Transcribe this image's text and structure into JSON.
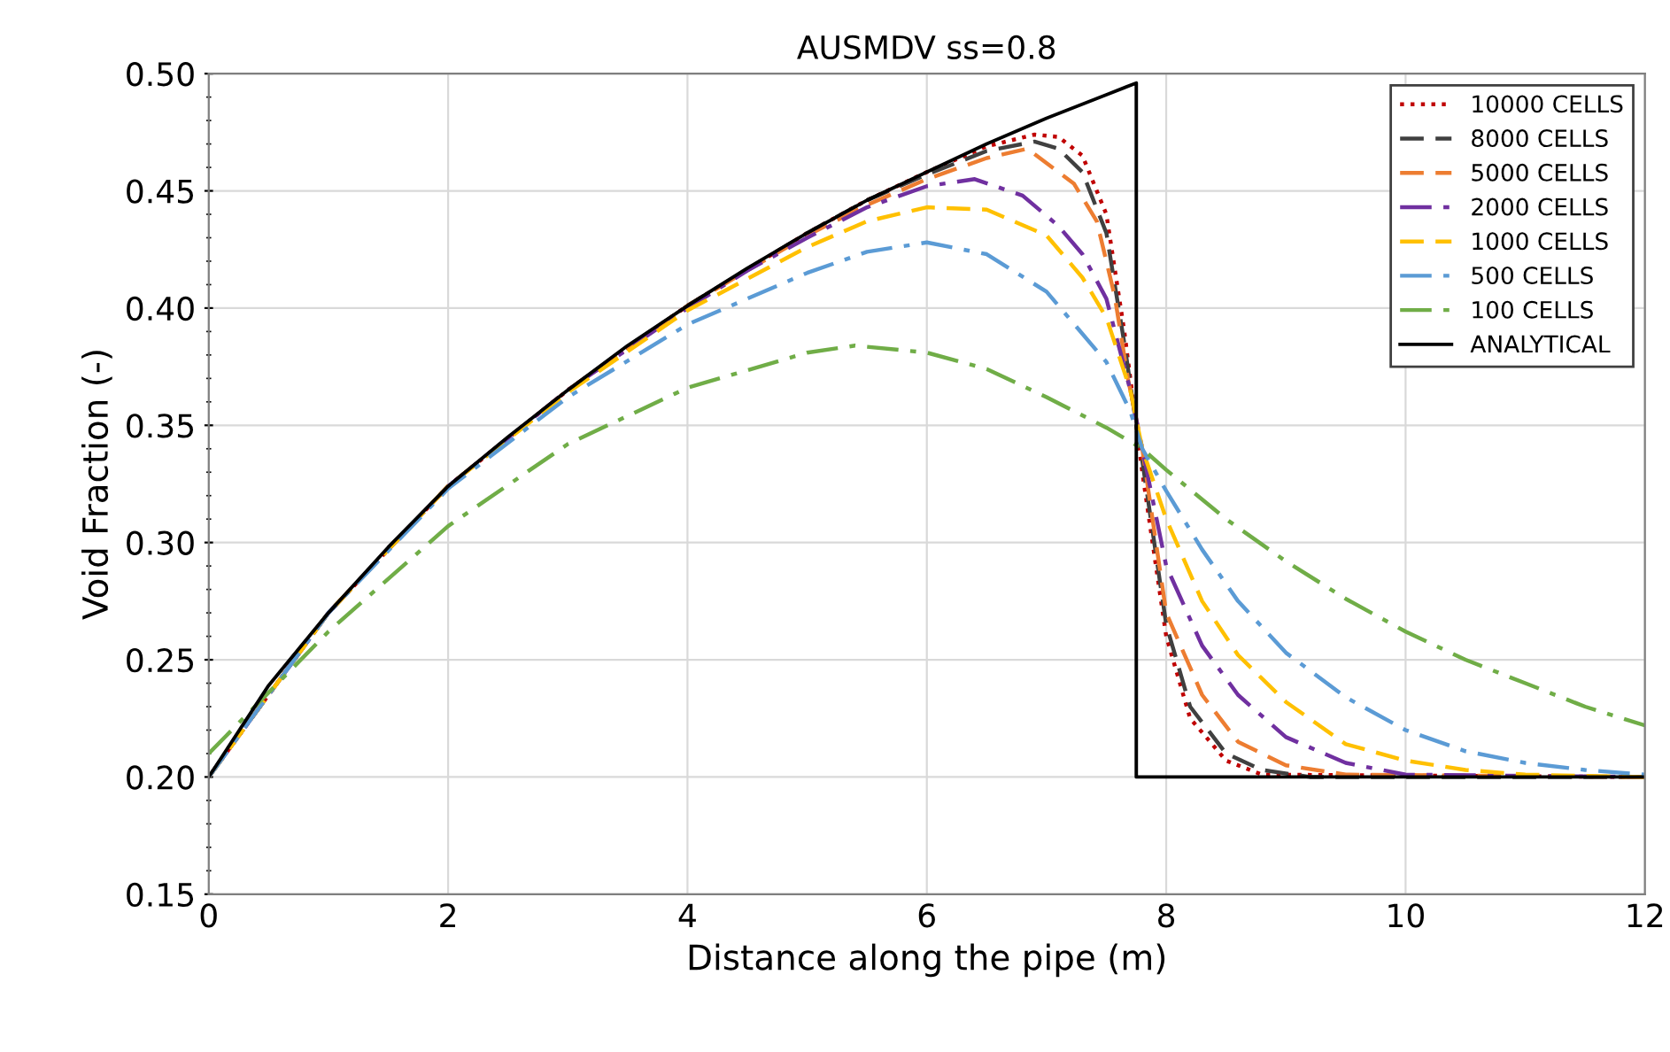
{
  "chart_data": {
    "type": "line",
    "title": "AUSMDV ss=0.8",
    "xlabel": "Distance along the pipe (m)",
    "ylabel": "Void Fraction (-)",
    "xlim": [
      0,
      12
    ],
    "xticks": [
      0,
      2,
      4,
      6,
      8,
      10,
      12
    ],
    "ylim": [
      0.15,
      0.5
    ],
    "yticks": [
      0.15,
      {
        "value": 0.2,
        "label": "0.20"
      },
      0.25,
      {
        "value": 0.3,
        "label": "0.30"
      },
      0.35,
      {
        "value": 0.4,
        "label": "0.40"
      },
      0.45,
      {
        "value": 0.5,
        "label": "0.50"
      }
    ],
    "grid": true,
    "legend": "top right",
    "marker": "none",
    "series": [
      {
        "name": "10000 CELLS",
        "color": "#c00000",
        "line_style": "dotted",
        "x": [
          0,
          1,
          2,
          3,
          4,
          5,
          5.5,
          6,
          6.5,
          6.9,
          7.1,
          7.3,
          7.5,
          7.65,
          7.75,
          7.8,
          8,
          8.2,
          8.5,
          8.8,
          12
        ],
        "values": [
          0.2,
          0.27,
          0.324,
          0.365,
          0.401,
          0.432,
          0.446,
          0.458,
          0.469,
          0.474,
          0.473,
          0.465,
          0.44,
          0.39,
          0.35,
          0.33,
          0.26,
          0.225,
          0.207,
          0.201,
          0.2
        ]
      },
      {
        "name": "8000 CELLS",
        "color": "#404040",
        "line_style": "dashed",
        "x": [
          0,
          1,
          2,
          3,
          4,
          5,
          5.5,
          6,
          6.5,
          6.9,
          7.1,
          7.3,
          7.5,
          7.65,
          7.75,
          7.8,
          8,
          8.2,
          8.5,
          8.8,
          9.2,
          12
        ],
        "values": [
          0.2,
          0.27,
          0.324,
          0.365,
          0.401,
          0.432,
          0.446,
          0.457,
          0.467,
          0.471,
          0.468,
          0.458,
          0.432,
          0.385,
          0.35,
          0.335,
          0.265,
          0.23,
          0.21,
          0.203,
          0.2,
          0.2
        ]
      },
      {
        "name": "5000 CELLS",
        "color": "#ed7d31",
        "line_style": "dashed",
        "x": [
          0,
          1,
          2,
          3,
          4,
          5,
          5.5,
          6,
          6.5,
          6.84,
          7.23,
          7.42,
          7.57,
          7.68,
          7.8,
          8,
          8.3,
          8.6,
          9,
          9.5,
          12
        ],
        "values": [
          0.2,
          0.27,
          0.324,
          0.365,
          0.401,
          0.431,
          0.444,
          0.455,
          0.464,
          0.468,
          0.453,
          0.437,
          0.405,
          0.37,
          0.34,
          0.27,
          0.235,
          0.215,
          0.205,
          0.201,
          0.2
        ]
      },
      {
        "name": "2000 CELLS",
        "color": "#7030a0",
        "line_style": "dashdot",
        "x": [
          0,
          1,
          2,
          3,
          4,
          4.5,
          5,
          5.5,
          6,
          6.4,
          6.8,
          7.1,
          7.3,
          7.5,
          7.7,
          7.8,
          8,
          8.3,
          8.6,
          9,
          9.5,
          10,
          12
        ],
        "values": [
          0.2,
          0.27,
          0.324,
          0.365,
          0.4,
          0.416,
          0.43,
          0.443,
          0.452,
          0.455,
          0.448,
          0.435,
          0.423,
          0.404,
          0.365,
          0.34,
          0.29,
          0.256,
          0.235,
          0.217,
          0.206,
          0.201,
          0.2
        ]
      },
      {
        "name": "1000 CELLS",
        "color": "#ffc000",
        "line_style": "dashed",
        "x": [
          0,
          1,
          2,
          3,
          4,
          5,
          5.5,
          6,
          6.5,
          7,
          7.3,
          7.5,
          7.7,
          7.8,
          8,
          8.3,
          8.6,
          9,
          9.5,
          10,
          10.5,
          11,
          12
        ],
        "values": [
          0.2,
          0.27,
          0.324,
          0.364,
          0.399,
          0.426,
          0.437,
          0.443,
          0.442,
          0.431,
          0.413,
          0.396,
          0.365,
          0.34,
          0.31,
          0.275,
          0.252,
          0.232,
          0.214,
          0.207,
          0.203,
          0.201,
          0.2
        ]
      },
      {
        "name": "500 CELLS",
        "color": "#5b9bd5",
        "line_style": "dashdot",
        "x": [
          0,
          1,
          2,
          3,
          4,
          5,
          5.5,
          6,
          6.5,
          7,
          7.5,
          7.7,
          7.8,
          8,
          8.3,
          8.6,
          9,
          9.5,
          10,
          10.5,
          11,
          11.5,
          12
        ],
        "values": [
          0.2,
          0.27,
          0.323,
          0.362,
          0.393,
          0.415,
          0.424,
          0.428,
          0.423,
          0.407,
          0.377,
          0.356,
          0.34,
          0.322,
          0.297,
          0.275,
          0.253,
          0.234,
          0.22,
          0.211,
          0.206,
          0.203,
          0.201
        ]
      },
      {
        "name": "100 CELLS",
        "color": "#70ad47",
        "line_style": "dashdot",
        "x": [
          0,
          1,
          2,
          3,
          4,
          5,
          5.4,
          6,
          6.5,
          7,
          7.5,
          7.8,
          8,
          8.5,
          9,
          9.5,
          10,
          10.5,
          11,
          11.5,
          12
        ],
        "values": [
          0.21,
          0.262,
          0.307,
          0.342,
          0.366,
          0.381,
          0.384,
          0.381,
          0.374,
          0.362,
          0.349,
          0.34,
          0.331,
          0.31,
          0.292,
          0.276,
          0.262,
          0.25,
          0.24,
          0.23,
          0.222
        ]
      },
      {
        "name": "ANALYTICAL",
        "color": "#000000",
        "line_style": "solid",
        "x": [
          0,
          0.5,
          1,
          1.5,
          2,
          2.5,
          3,
          3.5,
          4,
          4.5,
          5,
          5.5,
          6,
          6.5,
          7,
          7.5,
          7.75,
          7.75,
          12
        ],
        "values": [
          0.2,
          0.239,
          0.27,
          0.298,
          0.324,
          0.345,
          0.365,
          0.384,
          0.401,
          0.417,
          0.432,
          0.446,
          0.458,
          0.47,
          0.481,
          0.491,
          0.496,
          0.2,
          0.2
        ]
      }
    ]
  }
}
